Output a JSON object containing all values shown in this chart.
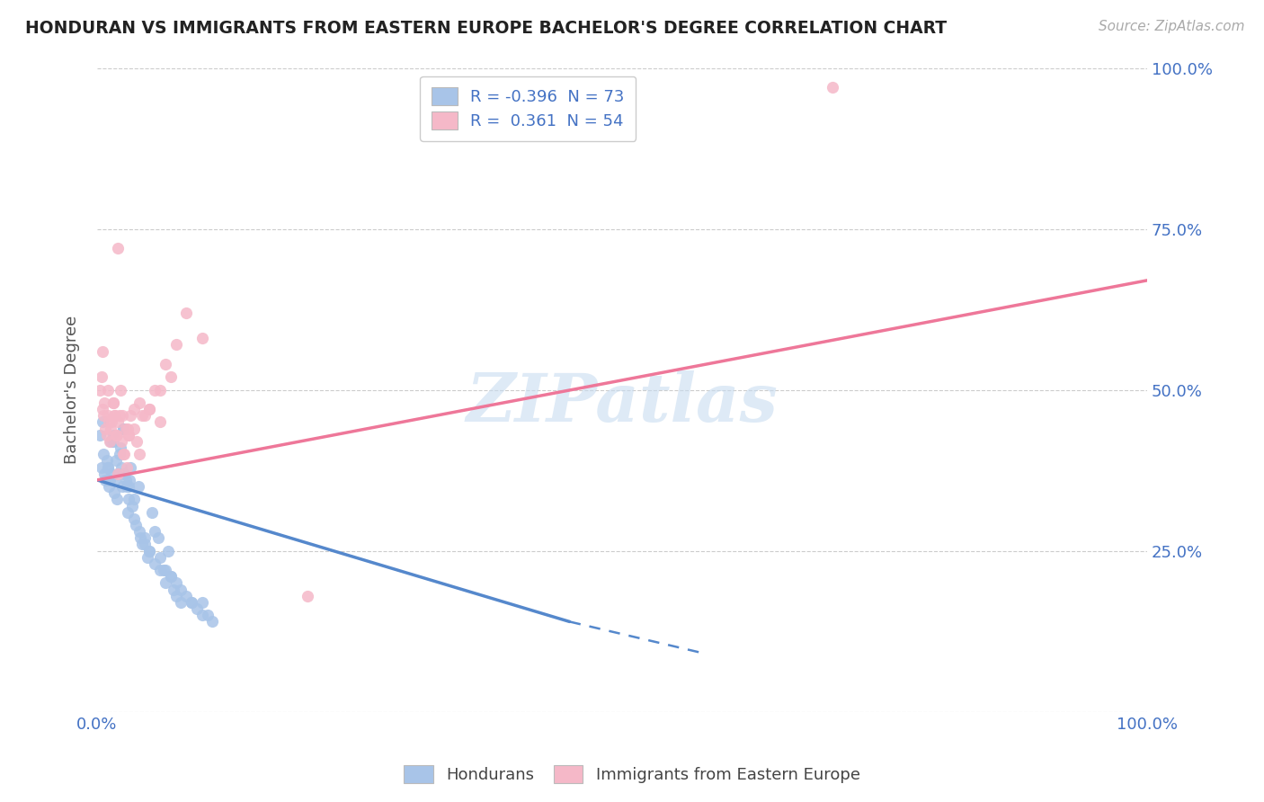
{
  "title": "HONDURAN VS IMMIGRANTS FROM EASTERN EUROPE BACHELOR'S DEGREE CORRELATION CHART",
  "source": "Source: ZipAtlas.com",
  "ylabel": "Bachelor's Degree",
  "legend_label1": "Hondurans",
  "legend_label2": "Immigrants from Eastern Europe",
  "r1": -0.396,
  "n1": 73,
  "r2": 0.361,
  "n2": 54,
  "blue_color": "#A8C4E8",
  "pink_color": "#F5B8C8",
  "blue_line_color": "#5588CC",
  "pink_line_color": "#EE7799",
  "watermark": "ZIPatlas",
  "blue_scatter_x": [
    0.4,
    0.6,
    0.7,
    0.8,
    0.9,
    1.0,
    1.1,
    1.2,
    1.3,
    1.4,
    1.5,
    1.6,
    1.7,
    1.8,
    1.9,
    2.0,
    2.1,
    2.2,
    2.3,
    2.4,
    2.5,
    2.6,
    2.7,
    2.8,
    2.9,
    3.0,
    3.1,
    3.2,
    3.3,
    3.5,
    3.7,
    3.9,
    4.1,
    4.3,
    4.5,
    4.8,
    5.0,
    5.2,
    5.5,
    5.8,
    6.0,
    6.3,
    6.5,
    6.8,
    7.0,
    7.3,
    7.5,
    8.0,
    8.5,
    9.0,
    9.5,
    10.0,
    10.5,
    11.0,
    0.5,
    0.3,
    1.0,
    1.5,
    2.0,
    2.5,
    3.0,
    3.5,
    4.0,
    4.5,
    5.0,
    5.5,
    6.0,
    6.5,
    7.0,
    7.5,
    8.0,
    9.0,
    10.0
  ],
  "blue_scatter_y": [
    38,
    40,
    37,
    36,
    39,
    38,
    35,
    36,
    42,
    37,
    43,
    34,
    36,
    39,
    33,
    37,
    40,
    41,
    38,
    35,
    44,
    37,
    36,
    35,
    31,
    33,
    36,
    38,
    32,
    30,
    29,
    35,
    27,
    26,
    27,
    24,
    25,
    31,
    28,
    27,
    24,
    22,
    22,
    25,
    21,
    19,
    20,
    19,
    18,
    17,
    16,
    17,
    15,
    14,
    45,
    43,
    38,
    42,
    37,
    44,
    35,
    33,
    28,
    26,
    25,
    23,
    22,
    20,
    21,
    18,
    17,
    17,
    15
  ],
  "pink_scatter_x": [
    0.3,
    0.4,
    0.5,
    0.6,
    0.7,
    0.8,
    0.9,
    1.0,
    1.1,
    1.2,
    1.3,
    1.4,
    1.5,
    1.6,
    1.7,
    1.8,
    1.9,
    2.0,
    2.1,
    2.2,
    2.3,
    2.4,
    2.5,
    2.6,
    2.7,
    2.8,
    2.9,
    3.0,
    3.2,
    3.5,
    3.8,
    4.0,
    4.3,
    4.5,
    5.0,
    5.5,
    6.0,
    6.5,
    7.0,
    7.5,
    8.5,
    10.0,
    20.0,
    70.0,
    0.5,
    1.0,
    1.5,
    2.0,
    3.0,
    4.0,
    5.0,
    6.0,
    2.0,
    3.5
  ],
  "pink_scatter_y": [
    50,
    52,
    47,
    46,
    48,
    44,
    43,
    46,
    45,
    42,
    44,
    45,
    48,
    46,
    46,
    43,
    43,
    45,
    46,
    50,
    42,
    46,
    40,
    40,
    44,
    38,
    44,
    43,
    46,
    44,
    42,
    48,
    46,
    46,
    47,
    50,
    45,
    54,
    52,
    57,
    62,
    58,
    18,
    97,
    56,
    50,
    48,
    72,
    43,
    40,
    47,
    50,
    37,
    47
  ],
  "blue_line_x0": 0,
  "blue_line_y0": 36,
  "blue_line_x1": 45,
  "blue_line_y1": 14,
  "blue_dash_x0": 45,
  "blue_dash_y0": 14,
  "blue_dash_x1": 58,
  "blue_dash_y1": 9,
  "pink_line_x0": 0,
  "pink_line_y0": 36,
  "pink_line_x1": 100,
  "pink_line_y1": 67,
  "xlim": [
    0,
    100
  ],
  "ylim": [
    0,
    100
  ],
  "background_color": "#FFFFFF",
  "grid_color": "#CCCCCC"
}
